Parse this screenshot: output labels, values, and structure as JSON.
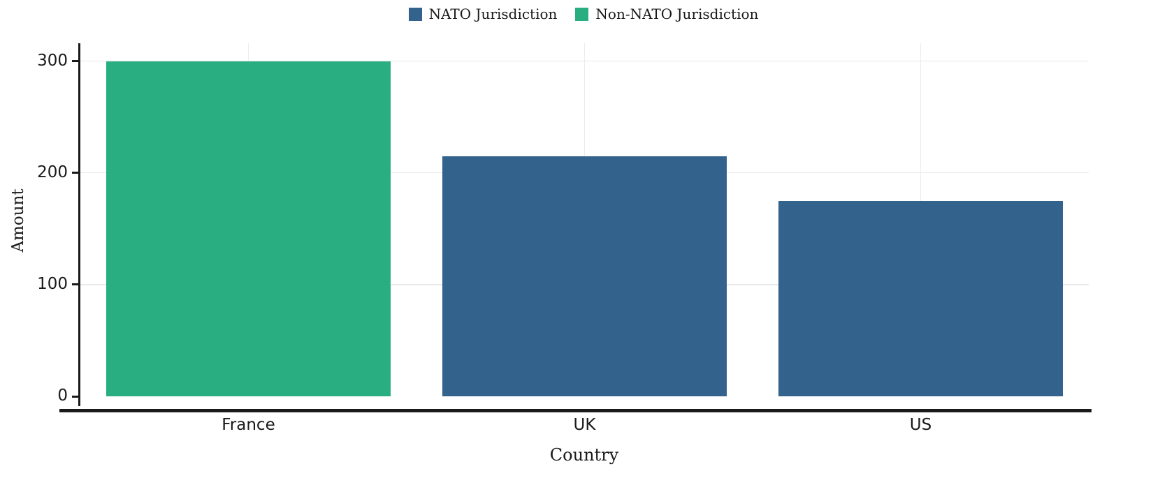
{
  "chart_data": {
    "type": "bar",
    "title": "",
    "xlabel": "Country",
    "ylabel": "Amount",
    "categories": [
      "France",
      "UK",
      "US"
    ],
    "values": [
      300,
      215,
      175
    ],
    "groups": [
      "Non-NATO Jurisdiction",
      "NATO Jurisdiction",
      "NATO Jurisdiction"
    ],
    "legend": [
      {
        "label": "NATO Jurisdiction",
        "color": "#33638D"
      },
      {
        "label": "Non-NATO Jurisdiction",
        "color": "#28AE80"
      }
    ],
    "legend_position": "top-center",
    "yticks": [
      0,
      100,
      200,
      300
    ],
    "ylim": [
      0,
      316
    ],
    "grid": true,
    "background_color": "#ffffff",
    "text_color": "#1a1a1a"
  }
}
